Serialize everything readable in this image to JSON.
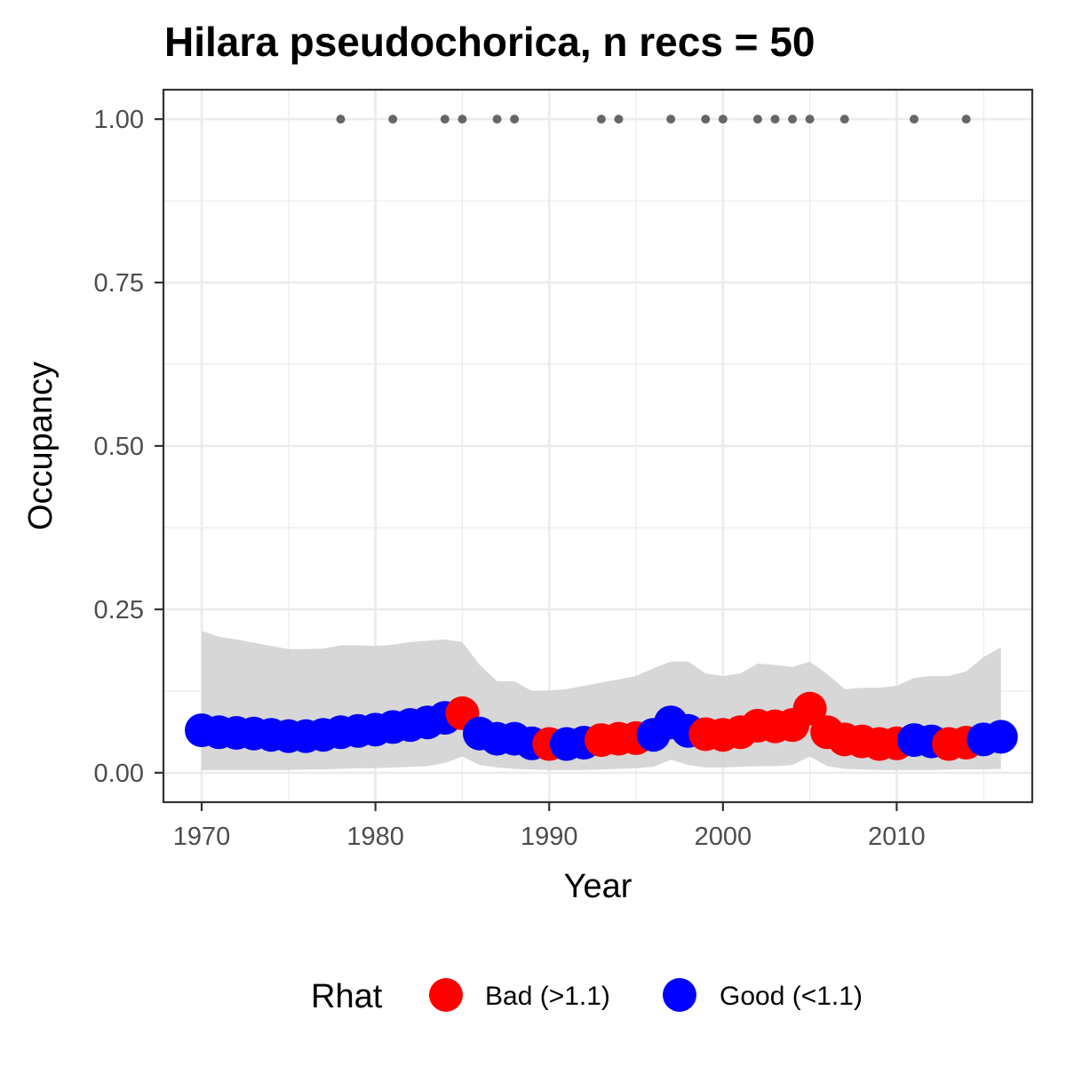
{
  "chart_data": {
    "type": "scatter",
    "title": "Hilara pseudochorica, n recs = 50",
    "xlabel": "Year",
    "ylabel": "Occupancy",
    "xlim": [
      1967.8,
      2017.8
    ],
    "ylim": [
      -0.045,
      1.045
    ],
    "x_ticks": [
      1970,
      1980,
      1990,
      2000,
      2010
    ],
    "x_tick_labels": [
      "1970",
      "1980",
      "1990",
      "2000",
      "2010"
    ],
    "y_ticks": [
      0,
      0.25,
      0.5,
      0.75,
      1
    ],
    "y_tick_labels": [
      "0.00",
      "0.25",
      "0.50",
      "0.75",
      "1.00"
    ],
    "grid": true,
    "legend": {
      "title": "Rhat",
      "position": "bottom",
      "entries": [
        {
          "label": "Bad (>1.1)",
          "color": "#ff0000"
        },
        {
          "label": "Good (<1.1)",
          "color": "#0000ff"
        }
      ]
    },
    "colors": {
      "bad": "#ff0000",
      "good": "#0000ff",
      "ribbon": "#d3d3d3",
      "records": "#666666"
    },
    "ribbon": {
      "x": [
        1970,
        1971,
        1972,
        1973,
        1974,
        1975,
        1976,
        1977,
        1978,
        1979,
        1980,
        1981,
        1982,
        1983,
        1984,
        1985,
        1986,
        1987,
        1988,
        1989,
        1990,
        1991,
        1992,
        1993,
        1994,
        1995,
        1996,
        1997,
        1998,
        1999,
        2000,
        2001,
        2002,
        2003,
        2004,
        2005,
        2006,
        2007,
        2008,
        2009,
        2010,
        2011,
        2012,
        2013,
        2014,
        2015,
        2016
      ],
      "lower": [
        0.004,
        0.004,
        0.004,
        0.004,
        0.004,
        0.004,
        0.005,
        0.005,
        0.006,
        0.007,
        0.007,
        0.008,
        0.009,
        0.01,
        0.015,
        0.025,
        0.012,
        0.008,
        0.006,
        0.005,
        0.004,
        0.004,
        0.004,
        0.005,
        0.006,
        0.007,
        0.009,
        0.02,
        0.012,
        0.008,
        0.008,
        0.009,
        0.01,
        0.01,
        0.012,
        0.025,
        0.01,
        0.006,
        0.005,
        0.004,
        0.004,
        0.004,
        0.004,
        0.005,
        0.005,
        0.005,
        0.006
      ],
      "upper": [
        0.217,
        0.208,
        0.204,
        0.199,
        0.194,
        0.189,
        0.189,
        0.19,
        0.195,
        0.195,
        0.194,
        0.196,
        0.2,
        0.202,
        0.204,
        0.2,
        0.165,
        0.14,
        0.14,
        0.125,
        0.126,
        0.128,
        0.133,
        0.138,
        0.143,
        0.148,
        0.16,
        0.17,
        0.17,
        0.152,
        0.148,
        0.152,
        0.167,
        0.165,
        0.162,
        0.17,
        0.151,
        0.128,
        0.13,
        0.13,
        0.133,
        0.145,
        0.148,
        0.148,
        0.155,
        0.177,
        0.192
      ]
    },
    "series": [
      {
        "name": "Occupancy",
        "x": [
          1970,
          1971,
          1972,
          1973,
          1974,
          1975,
          1976,
          1977,
          1978,
          1979,
          1980,
          1981,
          1982,
          1983,
          1984,
          1985,
          1986,
          1987,
          1988,
          1989,
          1990,
          1991,
          1992,
          1993,
          1994,
          1995,
          1996,
          1997,
          1998,
          1999,
          2000,
          2001,
          2002,
          2003,
          2004,
          2005,
          2006,
          2007,
          2008,
          2009,
          2010,
          2011,
          2012,
          2013,
          2014,
          2015,
          2016
        ],
        "y": [
          0.065,
          0.062,
          0.061,
          0.06,
          0.058,
          0.056,
          0.056,
          0.058,
          0.062,
          0.064,
          0.066,
          0.07,
          0.073,
          0.077,
          0.084,
          0.091,
          0.06,
          0.052,
          0.052,
          0.045,
          0.044,
          0.044,
          0.046,
          0.05,
          0.052,
          0.053,
          0.058,
          0.077,
          0.064,
          0.059,
          0.058,
          0.062,
          0.072,
          0.071,
          0.073,
          0.098,
          0.062,
          0.051,
          0.048,
          0.044,
          0.045,
          0.05,
          0.048,
          0.044,
          0.046,
          0.051,
          0.055
        ],
        "rhat": [
          "good",
          "good",
          "good",
          "good",
          "good",
          "good",
          "good",
          "good",
          "good",
          "good",
          "good",
          "good",
          "good",
          "good",
          "good",
          "bad",
          "good",
          "good",
          "good",
          "good",
          "bad",
          "good",
          "good",
          "bad",
          "bad",
          "bad",
          "good",
          "good",
          "good",
          "bad",
          "bad",
          "bad",
          "bad",
          "bad",
          "bad",
          "bad",
          "bad",
          "bad",
          "bad",
          "bad",
          "bad",
          "good",
          "good",
          "bad",
          "bad",
          "good",
          "good"
        ]
      }
    ],
    "records": {
      "x": [
        1978,
        1981,
        1984,
        1985,
        1987,
        1988,
        1993,
        1994,
        1997,
        1999,
        2000,
        2002,
        2003,
        2004,
        2005,
        2007,
        2011,
        2014
      ],
      "y": [
        1,
        1,
        1,
        1,
        1,
        1,
        1,
        1,
        1,
        1,
        1,
        1,
        1,
        1,
        1,
        1,
        1,
        1
      ]
    }
  }
}
